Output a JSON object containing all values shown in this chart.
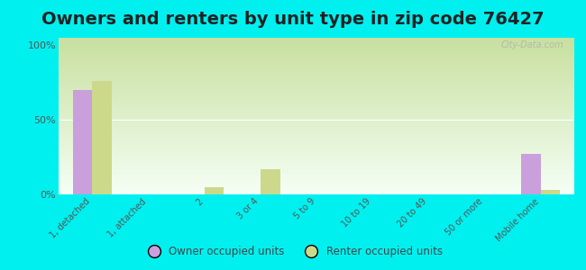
{
  "title": "Owners and renters by unit type in zip code 76427",
  "categories": [
    "1, detached",
    "1, attached",
    "2",
    "3 or 4",
    "5 to 9",
    "10 to 19",
    "20 to 49",
    "50 or more",
    "Mobile home"
  ],
  "owner_values": [
    70,
    0,
    0,
    0,
    0,
    0,
    0,
    0,
    27
  ],
  "renter_values": [
    76,
    0,
    5,
    17,
    0,
    0,
    0,
    0,
    3
  ],
  "owner_color": "#c9a0dc",
  "renter_color": "#ccd98a",
  "background_color": "#00f0f0",
  "grad_top": "#c8e0a0",
  "grad_bottom": "#f5fff5",
  "ylabel_ticks": [
    0,
    50,
    100
  ],
  "ylabel_labels": [
    "0%",
    "50%",
    "100%"
  ],
  "bar_width": 0.35,
  "title_fontsize": 14,
  "legend_owner": "Owner occupied units",
  "legend_renter": "Renter occupied units",
  "watermark": "City-Data.com",
  "ymax": 105
}
